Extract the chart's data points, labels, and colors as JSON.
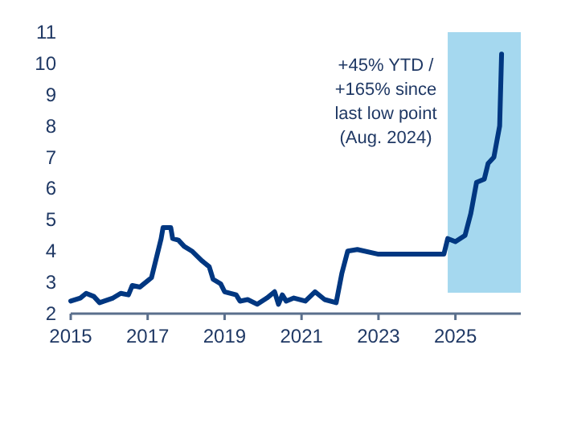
{
  "chart_data": {
    "type": "line",
    "x": [
      2015.0,
      2015.25,
      2015.4,
      2015.6,
      2015.75,
      2016.1,
      2016.3,
      2016.5,
      2016.6,
      2016.8,
      2017.0,
      2017.1,
      2017.35,
      2017.4,
      2017.6,
      2017.65,
      2017.8,
      2017.95,
      2018.15,
      2018.4,
      2018.6,
      2018.7,
      2018.9,
      2019.0,
      2019.3,
      2019.4,
      2019.6,
      2019.85,
      2020.1,
      2020.3,
      2020.4,
      2020.5,
      2020.6,
      2020.8,
      2021.1,
      2021.35,
      2021.6,
      2021.9,
      2022.05,
      2022.2,
      2022.45,
      2023.0,
      2023.7,
      2024.7,
      2024.8,
      2025.0,
      2025.25,
      2025.4,
      2025.55,
      2025.75,
      2025.85,
      2026.0,
      2026.15,
      2026.2
    ],
    "series": [
      {
        "color": "#003781",
        "values": [
          2.4,
          2.5,
          2.65,
          2.55,
          2.35,
          2.5,
          2.65,
          2.6,
          2.9,
          2.85,
          3.05,
          3.15,
          4.4,
          4.75,
          4.75,
          4.4,
          4.35,
          4.15,
          4.0,
          3.7,
          3.5,
          3.1,
          2.95,
          2.7,
          2.6,
          2.4,
          2.45,
          2.3,
          2.5,
          2.7,
          2.3,
          2.6,
          2.4,
          2.5,
          2.4,
          2.7,
          2.45,
          2.35,
          3.3,
          4.0,
          4.05,
          3.9,
          3.9,
          3.9,
          4.4,
          4.3,
          4.5,
          5.2,
          6.2,
          6.3,
          6.8,
          7.0,
          8.0,
          10.3
        ]
      }
    ],
    "xlim": [
      2015,
      2026.7
    ],
    "xticks": [
      2015,
      2017,
      2019,
      2021,
      2023,
      2025
    ],
    "ylim": [
      2,
      11
    ],
    "yticks": [
      2,
      3,
      4,
      5,
      6,
      7,
      8,
      9,
      10,
      11
    ],
    "bands": [
      {
        "axis": "x",
        "from": 2024.8,
        "to": 2026.7,
        "color": "#a5d8ef"
      }
    ],
    "annotations": [
      "+45% YTD /\n+165% since\nlast low point\n(Aug. 2024)"
    ]
  }
}
